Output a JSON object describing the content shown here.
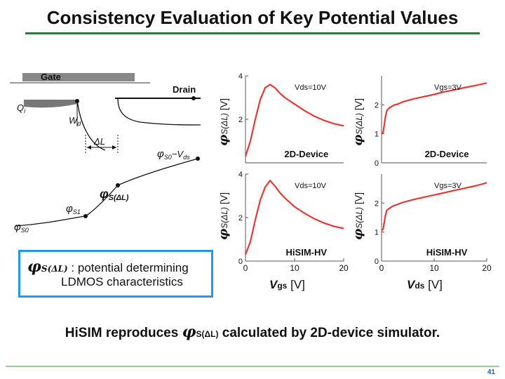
{
  "title": "Consistency Evaluation of Key Potential Values",
  "schematic": {
    "gate_label": "Gate",
    "drain_label": "Drain",
    "qi_label": "Q",
    "qi_sub": "i",
    "wd_label": "W",
    "wd_sub": "d",
    "delta_l_label": "ΔL",
    "phi_s0_vds_label": "φ",
    "phi_s0_vds_sub": "S0",
    "phi_s0_vds_suffix": "−V",
    "phi_s0_vds_suffix_sub": "ds",
    "phi_sdl_label": "φ",
    "phi_sdl_sub": "S(ΔL)",
    "phi_s1_label": "φ",
    "phi_s1_sub": "S1",
    "phi_s0_label": "φ",
    "phi_s0_sub": "S0"
  },
  "legend": {
    "symbol": "φ",
    "symbol_sub": "S(ΔL)",
    "line1": ": potential determining",
    "line2": "LDMOS characteristics"
  },
  "y_axis_label": {
    "symbol": "φ",
    "sub": "S(ΔL)",
    "unit": "[V]"
  },
  "x_axis_left": {
    "var": "V",
    "sub": "gs",
    "unit": "[V]"
  },
  "x_axis_right": {
    "var": "V",
    "sub": "ds",
    "unit": "[V]"
  },
  "summary": {
    "prefix": "HiSIM reproduces ",
    "symbol": "φ",
    "sub": "S(ΔL)",
    "suffix": " calculated by 2D-device simulator."
  },
  "page_number": "41",
  "colors": {
    "curve": "#e53935",
    "accent_rule": "#2e7d32",
    "legend_border": "#2196f3"
  },
  "chart_data": [
    {
      "type": "line",
      "annotation": "Vds=10V",
      "label": "2D-Device",
      "xlim": [
        0,
        20
      ],
      "ylim": [
        0,
        4
      ],
      "ytick_labels": [
        "4",
        "2"
      ],
      "x": [
        0,
        1,
        2,
        3,
        4,
        5,
        6,
        7,
        8,
        10,
        12,
        14,
        16,
        18,
        20
      ],
      "y": [
        0.3,
        1.0,
        2.0,
        2.9,
        3.45,
        3.6,
        3.45,
        3.2,
        3.0,
        2.7,
        2.4,
        2.15,
        1.95,
        1.8,
        1.7
      ]
    },
    {
      "type": "line",
      "annotation": "Vgs=3V",
      "label": "2D-Device",
      "xlim": [
        0,
        20
      ],
      "ylim": [
        0,
        3
      ],
      "ytick_labels": [
        "2",
        "1",
        "0"
      ],
      "x": [
        0,
        0.3,
        0.7,
        1,
        1.5,
        2,
        2.5,
        3,
        4,
        6,
        8,
        10,
        12,
        14,
        16,
        18,
        20
      ],
      "y": [
        1.0,
        1.05,
        1.55,
        1.8,
        1.9,
        1.95,
        2.0,
        2.02,
        2.1,
        2.2,
        2.28,
        2.36,
        2.45,
        2.52,
        2.6,
        2.67,
        2.75
      ]
    },
    {
      "type": "line",
      "annotation": "Vds=10V",
      "label": "HiSIM-HV",
      "xlim": [
        0,
        20
      ],
      "ylim": [
        0,
        4
      ],
      "ytick_labels": [
        "4",
        "2",
        "0"
      ],
      "xtick_labels": [
        "0",
        "10",
        "20"
      ],
      "x": [
        0,
        1,
        2,
        3,
        4,
        5,
        6,
        7,
        8,
        10,
        12,
        14,
        16,
        18,
        20
      ],
      "y": [
        0.3,
        0.9,
        1.9,
        2.8,
        3.4,
        3.7,
        3.45,
        3.15,
        2.9,
        2.5,
        2.2,
        1.95,
        1.75,
        1.6,
        1.5
      ]
    },
    {
      "type": "line",
      "annotation": "Vgs=3V",
      "label": "HiSIM-HV",
      "xlim": [
        0,
        20
      ],
      "ylim": [
        0,
        3
      ],
      "ytick_labels": [
        "2",
        "1",
        "0"
      ],
      "xtick_labels": [
        "0",
        "10",
        "20"
      ],
      "x": [
        0,
        0.3,
        0.7,
        1,
        1.5,
        2,
        2.5,
        3,
        4,
        6,
        8,
        10,
        12,
        14,
        16,
        18,
        20
      ],
      "y": [
        1.05,
        1.1,
        1.55,
        1.75,
        1.82,
        1.88,
        1.92,
        1.95,
        2.02,
        2.12,
        2.2,
        2.28,
        2.36,
        2.44,
        2.52,
        2.6,
        2.7
      ]
    }
  ]
}
